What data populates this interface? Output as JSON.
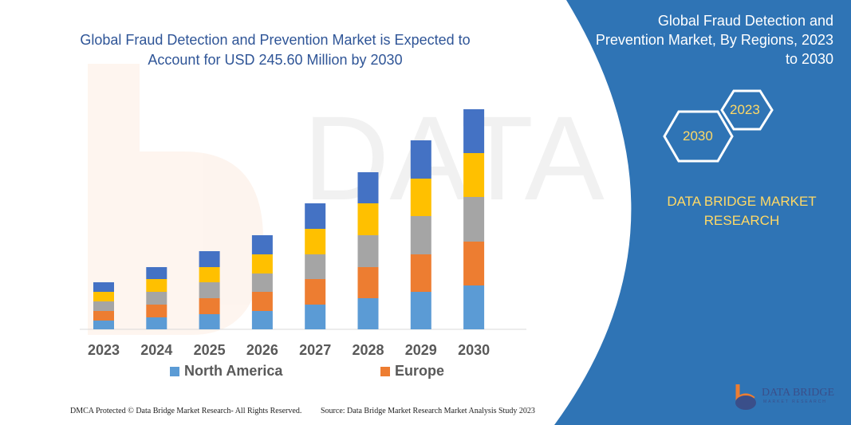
{
  "header": {
    "title": "Global Fraud Detection and Prevention Market is Expected to Account for USD 245.60 Million by 2030"
  },
  "side_panel": {
    "title": "Global Fraud Detection and Prevention Market, By Regions, 2023 to 2030",
    "hex_start": "2023",
    "hex_end": "2030",
    "brand": "DATA BRIDGE MARKET RESEARCH",
    "logo_text": "DATA BRIDGE",
    "logo_sub": "MARKET RESEARCH"
  },
  "footer": {
    "left": "DMCA Protected © Data Bridge Market Research-  All Rights Reserved.",
    "right": "Source:  Data Bridge Market Research  Market Analysis Study 2023"
  },
  "colors": {
    "panel": "#2f74b5",
    "title": "#2f5597",
    "accent": "#ffd966"
  },
  "chart_data": {
    "type": "bar",
    "stacked": true,
    "title": "Global Fraud Detection and Prevention Market is Expected to Account for USD 245.60 Million by 2030",
    "categories": [
      "2023",
      "2024",
      "2025",
      "2026",
      "2027",
      "2028",
      "2029",
      "2030"
    ],
    "series": [
      {
        "name": "North America",
        "color": "#5b9bd5",
        "values": [
          11,
          15,
          19,
          23,
          31,
          39,
          47,
          55
        ]
      },
      {
        "name": "Europe",
        "color": "#ed7d31",
        "values": [
          12,
          16,
          20,
          24,
          32,
          39,
          47,
          55
        ]
      },
      {
        "color": "#a5a5a5",
        "values": [
          12,
          16,
          20,
          23,
          31,
          40,
          48,
          56
        ]
      },
      {
        "color": "#ffc000",
        "values": [
          12,
          16,
          19,
          24,
          32,
          40,
          47,
          55
        ]
      },
      {
        "color": "#4472c4",
        "values": [
          12,
          15,
          20,
          24,
          32,
          39,
          48,
          55
        ]
      }
    ],
    "legend": [
      "North America",
      "Europe"
    ],
    "legend_position": "bottom",
    "y_axis_visible": false,
    "grid": false,
    "ylim": [
      0,
      280
    ]
  }
}
